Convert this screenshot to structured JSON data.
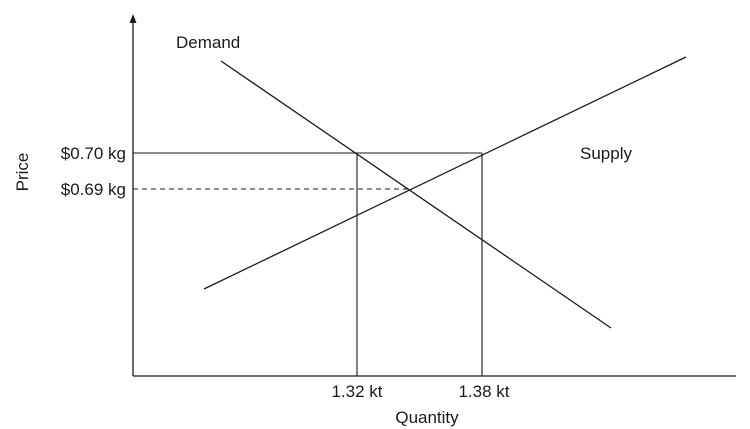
{
  "axes": {
    "y_label": "Price",
    "x_label": "Quantity"
  },
  "curves": {
    "demand_label": "Demand",
    "supply_label": "Supply"
  },
  "price_levels": {
    "high": "$0.70 kg",
    "equilibrium": "$0.69 kg"
  },
  "quantity_levels": {
    "low": "1.32 kt",
    "high": "1.38 kt"
  },
  "colors": {
    "ink": "#1a1a1a",
    "background": "#ffffff"
  }
}
